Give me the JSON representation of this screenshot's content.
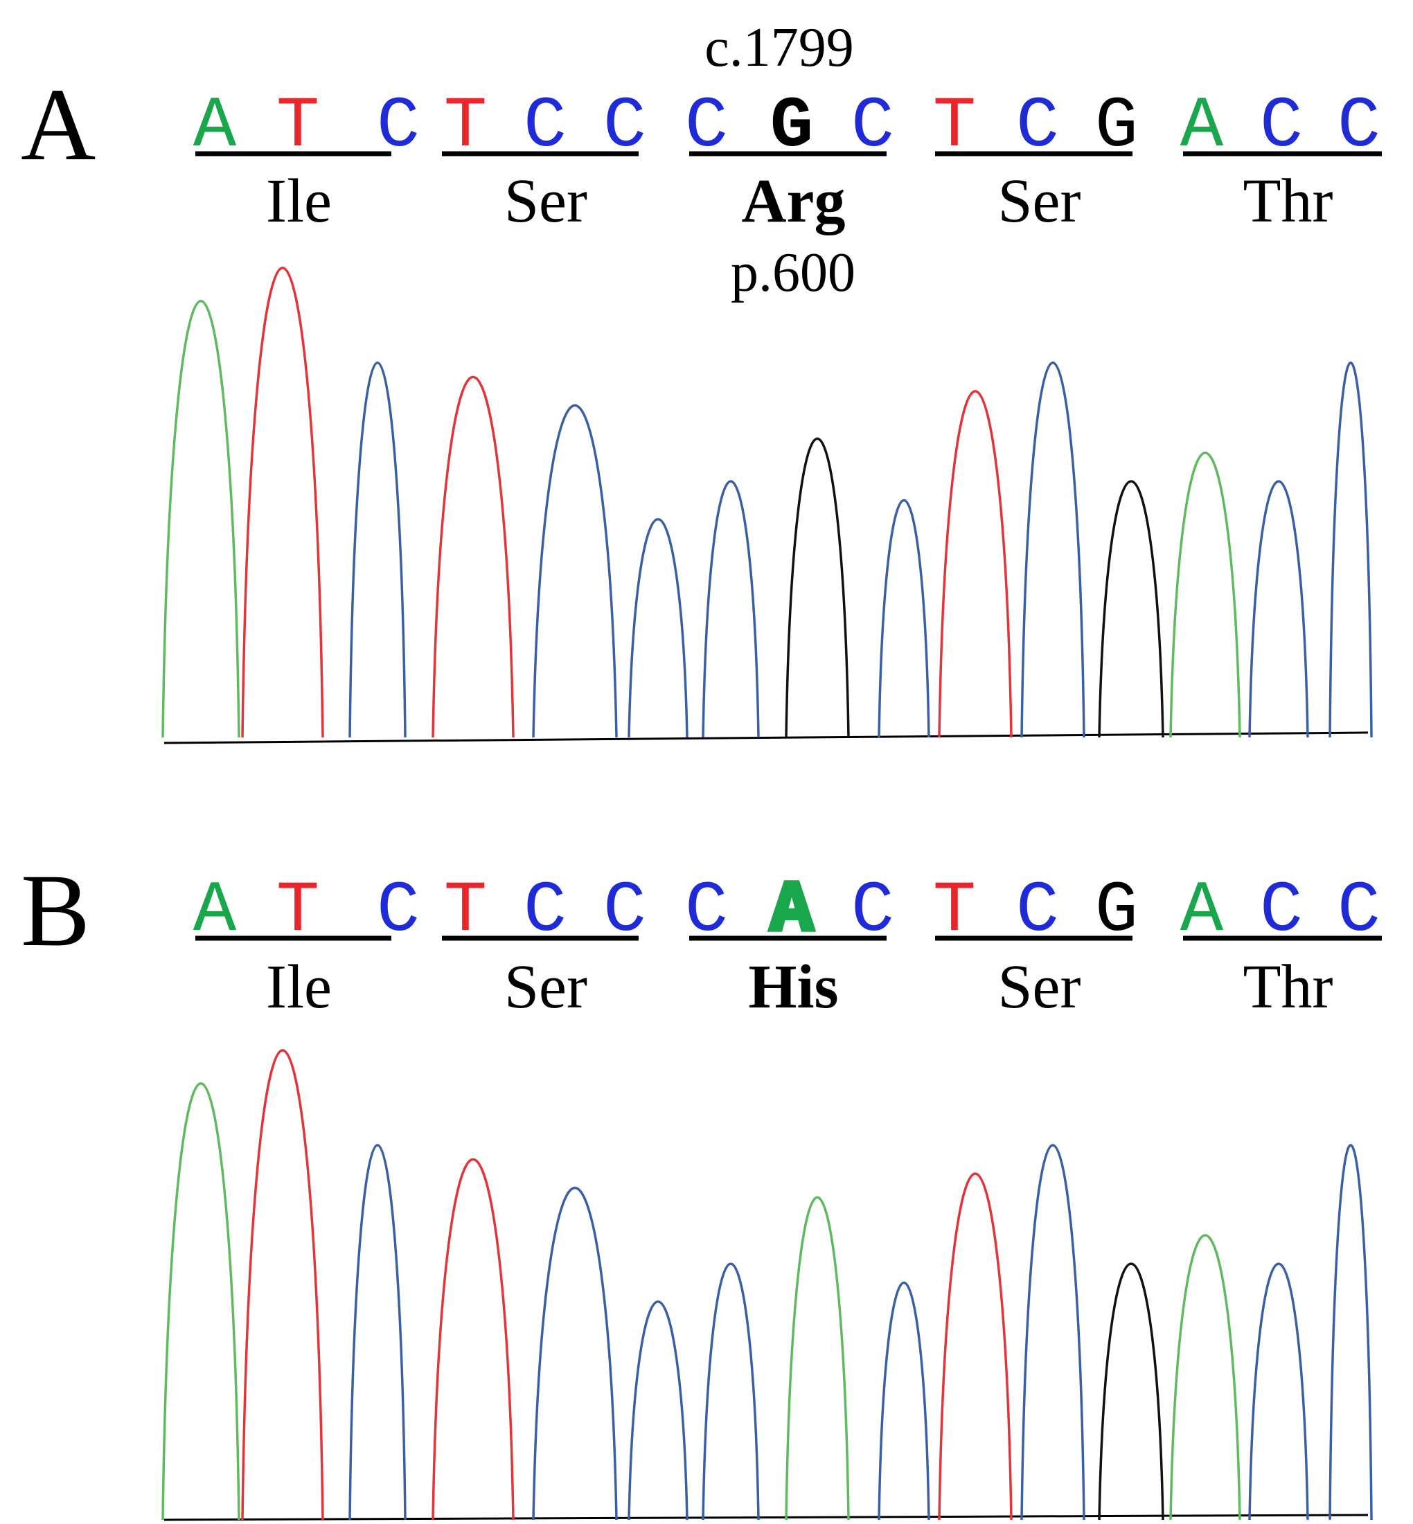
{
  "colors": {
    "A": "#1aa64a",
    "T": "#e8262b",
    "C": "#1f2bd6",
    "G": "#000000",
    "peak_C": "#3b5fa3",
    "peak_A": "#5fba5f",
    "peak_T": "#e0353a",
    "peak_G": "#111111",
    "highlight_red": "#ff0000"
  },
  "panels": [
    {
      "label": "A",
      "top_annotation": "c.1799",
      "bottom_annotation": "p.600",
      "bases": [
        "A",
        "T",
        "C",
        "T",
        "C",
        "C",
        "C",
        "G",
        "C",
        "T",
        "C",
        "G",
        "A",
        "C",
        "C"
      ],
      "highlight_base_index": 7,
      "codons": [
        "Ile",
        "Ser",
        "Arg",
        "Ser",
        "Thr"
      ],
      "highlight_codon_index": 2,
      "highlight_codon_color": "#000000",
      "peak_heights": [
        0.92,
        0.99,
        0.79,
        0.76,
        0.7,
        0.46,
        0.54,
        0.63,
        0.5,
        0.73,
        0.79,
        0.54,
        0.6,
        0.54,
        0.79
      ]
    },
    {
      "label": "B",
      "top_annotation": "",
      "bottom_annotation": "",
      "bases": [
        "A",
        "T",
        "C",
        "T",
        "C",
        "C",
        "C",
        "A",
        "C",
        "T",
        "C",
        "G",
        "A",
        "C",
        "C"
      ],
      "highlight_base_index": 7,
      "codons": [
        "Ile",
        "Ser",
        "His",
        "Ser",
        "Thr"
      ],
      "highlight_codon_index": 2,
      "highlight_codon_color": "#ff0000",
      "peak_heights": [
        0.92,
        0.99,
        0.79,
        0.76,
        0.7,
        0.46,
        0.54,
        0.68,
        0.5,
        0.73,
        0.79,
        0.54,
        0.6,
        0.54,
        0.79
      ]
    }
  ]
}
